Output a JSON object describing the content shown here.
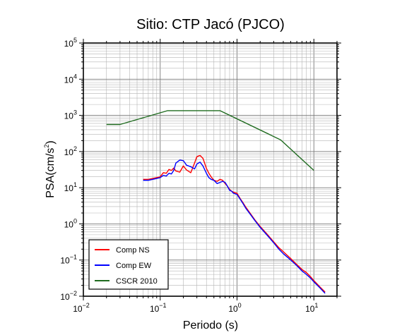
{
  "chart_data": {
    "type": "line",
    "title": "Sitio: CTP Jacó (PJCO)",
    "xlabel": "Periodo (s)",
    "ylabel": {
      "base": "PSA(cm/s",
      "sup": "2",
      "end": ")"
    },
    "xscale": "log",
    "yscale": "log",
    "xlim": [
      0.01,
      20
    ],
    "ylim": [
      0.01,
      100000
    ],
    "grid": true,
    "legend_position": "bottom-left",
    "x_ticks": [
      {
        "value": 0.01,
        "base": "10",
        "exp": "−2"
      },
      {
        "value": 0.1,
        "base": "10",
        "exp": "−1"
      },
      {
        "value": 1,
        "base": "10",
        "exp": "0"
      },
      {
        "value": 10,
        "base": "10",
        "exp": "1"
      }
    ],
    "y_ticks": [
      {
        "value": 0.01,
        "base": "10",
        "exp": "−2"
      },
      {
        "value": 0.1,
        "base": "10",
        "exp": "−1"
      },
      {
        "value": 1,
        "base": "10",
        "exp": "0"
      },
      {
        "value": 10,
        "base": "10",
        "exp": "1"
      },
      {
        "value": 100,
        "base": "10",
        "exp": "2"
      },
      {
        "value": 1000,
        "base": "10",
        "exp": "3"
      },
      {
        "value": 10000,
        "base": "10",
        "exp": "4"
      },
      {
        "value": 100000,
        "base": "10",
        "exp": "5"
      }
    ],
    "series": [
      {
        "name": "Comp NS",
        "color": "#ff0000",
        "x": [
          0.06,
          0.07,
          0.08,
          0.09,
          0.1,
          0.11,
          0.12,
          0.13,
          0.14,
          0.15,
          0.16,
          0.18,
          0.2,
          0.22,
          0.25,
          0.28,
          0.3,
          0.33,
          0.36,
          0.4,
          0.43,
          0.46,
          0.5,
          0.55,
          0.6,
          0.65,
          0.7,
          0.75,
          0.8,
          0.85,
          0.9,
          1.0,
          1.1,
          1.2,
          1.3,
          1.5,
          1.7,
          2.0,
          2.5,
          3.0,
          3.5,
          4.0,
          5.0,
          6.0,
          7.0,
          8.0,
          9.0,
          10.0,
          12.0,
          14.0
        ],
        "y": [
          17,
          17,
          18,
          19,
          20,
          26,
          25,
          32,
          30,
          35,
          29,
          27,
          40,
          31,
          26,
          48,
          72,
          78,
          65,
          34,
          25,
          20,
          16,
          15,
          17,
          16,
          13,
          11,
          9,
          8,
          7.5,
          7,
          5,
          3.8,
          2.9,
          1.9,
          1.3,
          0.85,
          0.5,
          0.32,
          0.22,
          0.17,
          0.11,
          0.075,
          0.055,
          0.045,
          0.035,
          0.027,
          0.018,
          0.013
        ]
      },
      {
        "name": "Comp EW",
        "color": "#0000ff",
        "x": [
          0.06,
          0.07,
          0.08,
          0.09,
          0.1,
          0.11,
          0.12,
          0.13,
          0.14,
          0.15,
          0.16,
          0.18,
          0.2,
          0.22,
          0.25,
          0.28,
          0.3,
          0.33,
          0.36,
          0.4,
          0.43,
          0.46,
          0.5,
          0.55,
          0.6,
          0.65,
          0.7,
          0.75,
          0.8,
          0.85,
          0.9,
          1.0,
          1.1,
          1.2,
          1.3,
          1.5,
          1.7,
          2.0,
          2.5,
          3.0,
          3.5,
          4.0,
          5.0,
          6.0,
          7.0,
          8.0,
          9.0,
          10.0,
          12.0,
          14.0
        ],
        "y": [
          16,
          16,
          17,
          18,
          19,
          22,
          21,
          25,
          24,
          30,
          48,
          58,
          56,
          42,
          38,
          33,
          45,
          51,
          40,
          25,
          19,
          17,
          16,
          13,
          14,
          15,
          14,
          11,
          8.5,
          8,
          7,
          6.5,
          4.8,
          3.6,
          2.7,
          1.8,
          1.25,
          0.8,
          0.47,
          0.3,
          0.2,
          0.15,
          0.1,
          0.07,
          0.05,
          0.04,
          0.032,
          0.025,
          0.017,
          0.012
        ]
      },
      {
        "name": "CSCR 2010",
        "color": "#1f6b1f",
        "x": [
          0.02,
          0.03,
          0.125,
          0.6,
          3.7,
          10.0
        ],
        "y": [
          560,
          560,
          1350,
          1350,
          210,
          30
        ]
      }
    ]
  }
}
